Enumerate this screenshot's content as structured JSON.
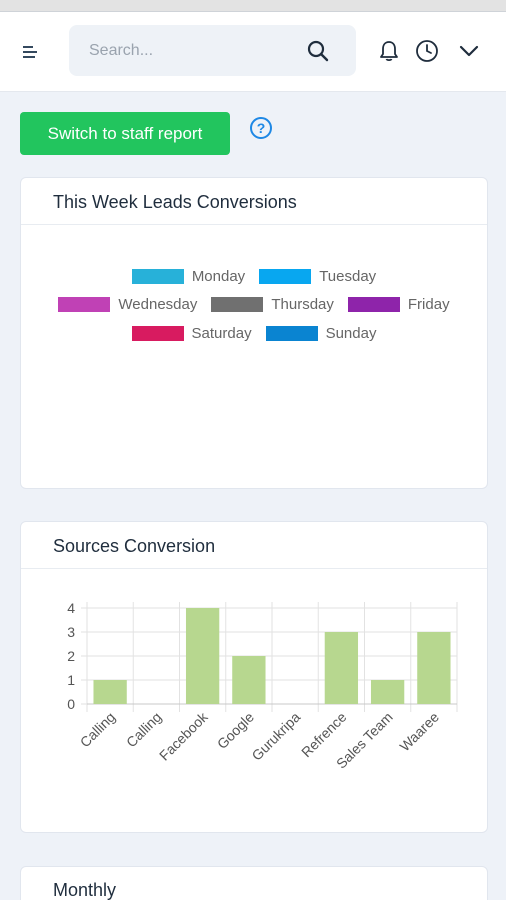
{
  "header": {
    "search_placeholder": "Search...",
    "icons": [
      "menu-icon",
      "search-icon",
      "bell-icon",
      "clock-icon",
      "chevron-down-icon"
    ]
  },
  "actions": {
    "switch_label": "Switch to staff report",
    "help_icon": "question-circle-icon"
  },
  "leads_card": {
    "title": "This Week Leads Conversions",
    "legend": [
      {
        "label": "Monday",
        "color": "#27b1d9"
      },
      {
        "label": "Tuesday",
        "color": "#08a7f0"
      },
      {
        "label": "Wednesday",
        "color": "#c041b5"
      },
      {
        "label": "Thursday",
        "color": "#707070"
      },
      {
        "label": "Friday",
        "color": "#8e24aa"
      },
      {
        "label": "Saturday",
        "color": "#d81b60"
      },
      {
        "label": "Sunday",
        "color": "#0a84d1"
      }
    ]
  },
  "sources_card": {
    "title": "Sources Conversion"
  },
  "monthly_card": {
    "title": "Monthly"
  },
  "chart_data": {
    "type": "bar",
    "categories": [
      "Calling",
      "Calling",
      "Facebook",
      "Google",
      "Gurukripa",
      "Refrence",
      "Sales Team",
      "Waaree"
    ],
    "values": [
      1,
      0,
      4,
      2,
      0,
      3,
      1,
      3
    ],
    "ylim": [
      0,
      4
    ],
    "yticks": [
      0,
      1,
      2,
      3,
      4
    ],
    "grid": true,
    "bar_color": "#b7d78f"
  }
}
